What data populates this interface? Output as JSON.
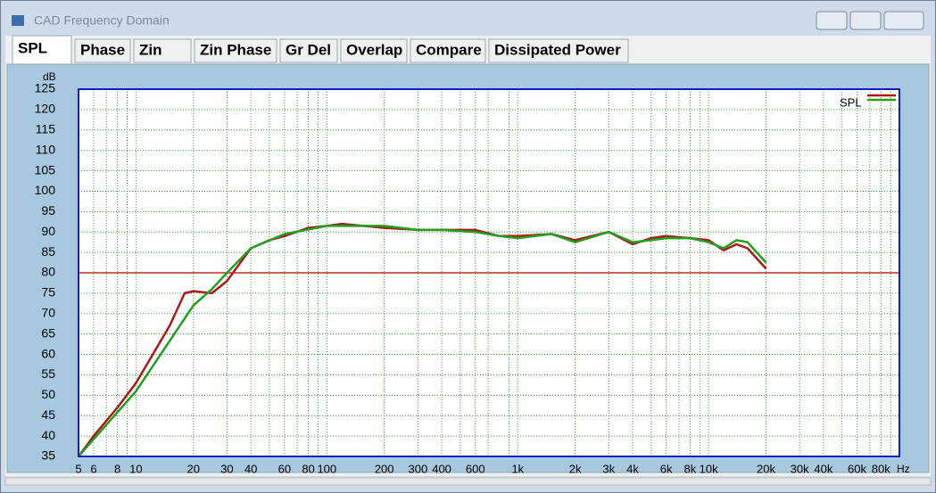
{
  "window": {
    "title": "CAD Frequency Domain",
    "tabs": [
      "SPL",
      "Phase",
      "Zin",
      "Zin Phase",
      "Gr Del",
      "Overlap",
      "Compare",
      "Dissipated Power"
    ]
  },
  "chart_data": {
    "type": "line",
    "y_label": "dB",
    "x_label": "Hz",
    "log_x": true,
    "grid": true,
    "xlim": [
      5,
      100000
    ],
    "ylim": [
      35,
      125
    ],
    "yticks": [
      35,
      40,
      45,
      50,
      55,
      60,
      65,
      70,
      75,
      80,
      85,
      90,
      95,
      100,
      105,
      110,
      115,
      120,
      125
    ],
    "xticks": [
      5,
      6,
      8,
      10,
      20,
      30,
      40,
      60,
      80,
      100,
      200,
      300,
      400,
      600,
      {
        "value": 1000,
        "label": "1k"
      },
      {
        "value": 2000,
        "label": "2k"
      },
      {
        "value": 3000,
        "label": "3k"
      },
      {
        "value": 4000,
        "label": "4k"
      },
      {
        "value": 6000,
        "label": "6k"
      },
      {
        "value": 8000,
        "label": "8k"
      },
      {
        "value": 10000,
        "label": "10k"
      },
      {
        "value": 20000,
        "label": "20k"
      },
      {
        "value": 30000,
        "label": "30k"
      },
      {
        "value": 40000,
        "label": "40k"
      },
      {
        "value": 60000,
        "label": "60k"
      },
      {
        "value": 80000,
        "label": "80k"
      }
    ],
    "x_minor_ticks": [
      7,
      9,
      50,
      70,
      90,
      500,
      700,
      900,
      5000,
      7000,
      9000,
      50000,
      70000,
      90000
    ],
    "reference_line": 80,
    "reference_color": "#b00000",
    "series": [
      {
        "name": "SPL",
        "color": "#b01818",
        "x": [
          5,
          6,
          8,
          10,
          15,
          18,
          20,
          25,
          30,
          40,
          50,
          60,
          80,
          100,
          120,
          200,
          300,
          400,
          600,
          800,
          1000,
          1500,
          2000,
          3000,
          4000,
          5000,
          6000,
          8000,
          10000,
          12000,
          14000,
          16000,
          20000
        ],
        "values": [
          35,
          40,
          47,
          53,
          67,
          75,
          75.5,
          75,
          78,
          86,
          88,
          89,
          91,
          91.5,
          92,
          91,
          90.5,
          90.5,
          90.5,
          89,
          89,
          89.5,
          88,
          90,
          87,
          88.5,
          89,
          88.5,
          88,
          85.5,
          87,
          86,
          81
        ]
      },
      {
        "color": "#20a020",
        "x": [
          5,
          10,
          20,
          25,
          30,
          40,
          60,
          100,
          200,
          300,
          400,
          600,
          800,
          1000,
          1500,
          2000,
          3000,
          4000,
          5000,
          6000,
          8000,
          10000,
          12000,
          14000,
          16000,
          20000
        ],
        "values": [
          35,
          51,
          72,
          76,
          80,
          86,
          89.5,
          91.5,
          91.5,
          90.5,
          90.5,
          90,
          89,
          88.5,
          89.5,
          87.5,
          90,
          87.5,
          88,
          88.5,
          88.5,
          87.5,
          86,
          88,
          87.5,
          82.5
        ]
      }
    ]
  }
}
